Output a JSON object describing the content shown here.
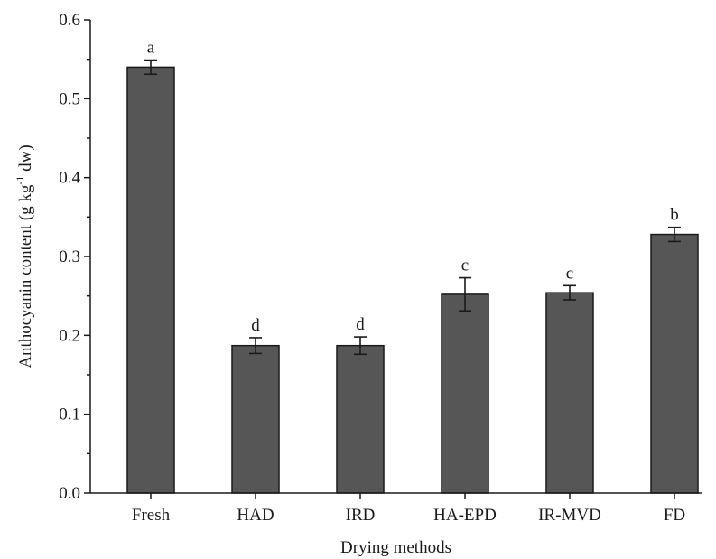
{
  "chart_data": {
    "type": "bar",
    "categories": [
      "Fresh",
      "HAD",
      "IRD",
      "HA-EPD",
      "IR-MVD",
      "FD"
    ],
    "values": [
      0.54,
      0.187,
      0.187,
      0.252,
      0.254,
      0.328
    ],
    "errors": [
      0.009,
      0.01,
      0.011,
      0.021,
      0.009,
      0.009
    ],
    "significance": [
      "a",
      "d",
      "d",
      "c",
      "c",
      "b"
    ],
    "xlabel": "Drying methods",
    "ylabel_main": "Anthocyanin content (g kg",
    "ylabel_sup": "-1",
    "ylabel_tail": " dw)",
    "ylim": [
      0.0,
      0.6
    ],
    "yticks": [
      "0.0",
      "0.1",
      "0.2",
      "0.3",
      "0.4",
      "0.5",
      "0.6"
    ],
    "minor_ticks": true,
    "grid": false,
    "legend": "none",
    "bar_color": "#565656",
    "edge_color": "#1a1a1a"
  }
}
